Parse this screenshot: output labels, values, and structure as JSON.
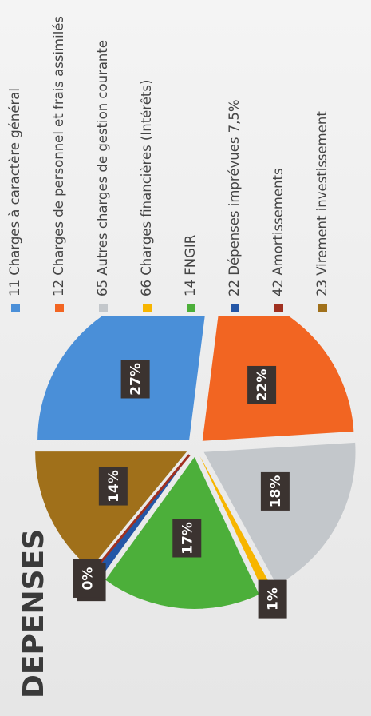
{
  "chart_data": {
    "type": "pie",
    "title": "DEPENSES",
    "categories": [
      "11 Charges à caractère général",
      "12 Charges de personnel et frais assimilés",
      "65 Autres charges de gestion courante",
      "66 Charges financières (Intérêts)",
      "14 FNGIR",
      "22 Dépenses imprévues 7,5%",
      "42 Amortissements",
      "23 Virement investissement"
    ],
    "values": [
      27,
      22,
      18,
      1,
      17,
      1,
      0,
      14
    ],
    "value_labels": [
      "27%",
      "22%",
      "18%",
      "1%",
      "17%",
      "1%",
      "0%",
      "14%"
    ],
    "colors": [
      "#4a8fd8",
      "#f26522",
      "#c3c7cb",
      "#f7b500",
      "#4caf3a",
      "#2456a6",
      "#a03020",
      "#a0701a"
    ],
    "legend": "right"
  }
}
